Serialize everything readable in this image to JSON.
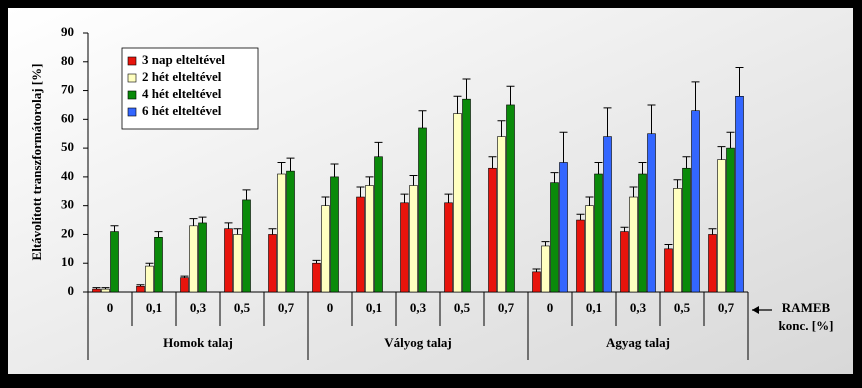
{
  "chart_data": {
    "type": "bar",
    "ylabel": "Eltávolított transzformátorolaj [%]",
    "x_label_lines": [
      "RAMEB",
      "konc. [%]"
    ],
    "categories": [
      "0",
      "0,1",
      "0,3",
      "0,5",
      "0,7",
      "0",
      "0,1",
      "0,3",
      "0,5",
      "0,7",
      "0",
      "0,1",
      "0,3",
      "0,5",
      "0,7"
    ],
    "category_groups": [
      "Homok talaj",
      "Vályog talaj",
      "Agyag talaj"
    ],
    "ylim": [
      0,
      90
    ],
    "yticks": [
      0,
      10,
      20,
      30,
      40,
      50,
      60,
      70,
      80,
      90
    ],
    "legend": "upper left",
    "series": [
      {
        "name": "3 nap elteltével",
        "color": "#e8140c",
        "values": [
          1,
          2,
          5,
          22,
          20,
          10,
          33,
          31,
          31,
          43,
          7,
          25,
          21,
          15,
          20
        ],
        "errors": [
          0.5,
          0.5,
          0.5,
          2,
          2,
          1,
          3.5,
          3,
          3,
          4,
          1,
          2,
          1.5,
          1.5,
          2
        ]
      },
      {
        "name": "2 hét elteltével",
        "color": "#ffffc0",
        "values": [
          1,
          9,
          23,
          20,
          41,
          30,
          37,
          37,
          62,
          54,
          16,
          30,
          33,
          36,
          46
        ],
        "errors": [
          0.5,
          1,
          2.5,
          2,
          4,
          3,
          3,
          3.5,
          6,
          5.5,
          1.5,
          3,
          3.5,
          3,
          4.5
        ]
      },
      {
        "name": "4 hét elteltével",
        "color": "#0a8a0a",
        "values": [
          21,
          19,
          24,
          32,
          42,
          40,
          47,
          57,
          67,
          65,
          38,
          41,
          41,
          43,
          50
        ],
        "errors": [
          2,
          2,
          2,
          3.5,
          4.5,
          4.5,
          5,
          6,
          7,
          6.5,
          3.5,
          4,
          4,
          4,
          5.5
        ]
      },
      {
        "name": "6 hét elteltével",
        "color": "#3366ff",
        "values": [
          null,
          null,
          null,
          null,
          null,
          null,
          null,
          null,
          null,
          null,
          45,
          54,
          55,
          63,
          68
        ],
        "errors": [
          null,
          null,
          null,
          null,
          null,
          null,
          null,
          null,
          null,
          null,
          10.5,
          10,
          10,
          10,
          10
        ]
      }
    ]
  }
}
